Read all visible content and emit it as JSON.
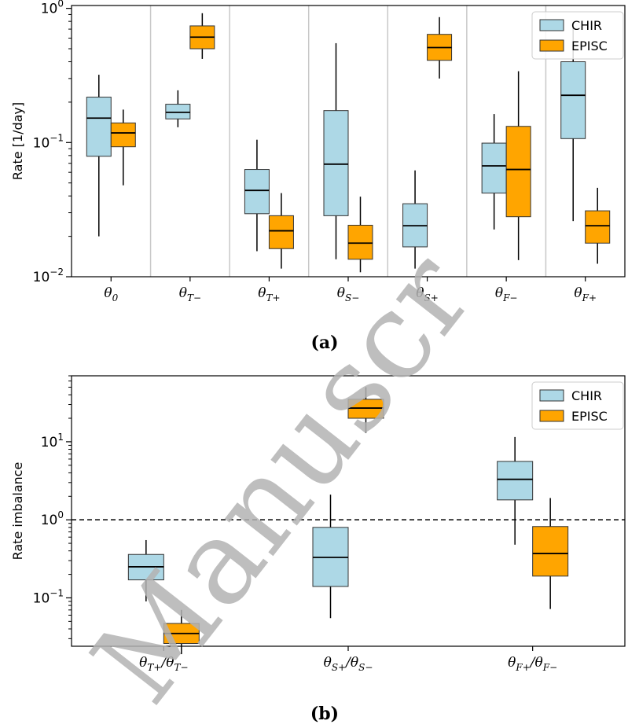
{
  "watermark": {
    "text": "Manuscr"
  },
  "chart_data": [
    {
      "type": "boxplot",
      "panel_label": "(a)",
      "ylabel": "Rate [1/day]",
      "yscale": "log",
      "ylim": [
        0.01,
        1.05
      ],
      "yticks": [
        0.01,
        0.1,
        1
      ],
      "ytick_labels": [
        {
          "base": "10",
          "exp": "−2"
        },
        {
          "base": "10",
          "exp": "−1"
        },
        {
          "base": "10",
          "exp": "0"
        }
      ],
      "separators": true,
      "legend": {
        "position": "top-right",
        "entries": [
          "CHIR",
          "EPISC"
        ]
      },
      "colors": {
        "CHIR": "#add8e6",
        "EPISC": "#ffa500"
      },
      "categories": [
        {
          "main": "θ",
          "sub": "0"
        },
        {
          "main": "θ",
          "sub": "T−"
        },
        {
          "main": "θ",
          "sub": "T+"
        },
        {
          "main": "θ",
          "sub": "S−"
        },
        {
          "main": "θ",
          "sub": "S+"
        },
        {
          "main": "θ",
          "sub": "F−"
        },
        {
          "main": "θ",
          "sub": "F+"
        }
      ],
      "series": [
        {
          "name": "CHIR",
          "boxes": [
            {
              "whislo": 0.02,
              "q1": 0.079,
              "med": 0.152,
              "q3": 0.218,
              "whishi": 0.32
            },
            {
              "whislo": 0.13,
              "q1": 0.15,
              "med": 0.168,
              "q3": 0.193,
              "whishi": 0.245
            },
            {
              "whislo": 0.0155,
              "q1": 0.0295,
              "med": 0.044,
              "q3": 0.063,
              "whishi": 0.105
            },
            {
              "whislo": 0.0135,
              "q1": 0.0285,
              "med": 0.069,
              "q3": 0.173,
              "whishi": 0.55
            },
            {
              "whislo": 0.0115,
              "q1": 0.0167,
              "med": 0.024,
              "q3": 0.035,
              "whishi": 0.062
            },
            {
              "whislo": 0.0225,
              "q1": 0.042,
              "med": 0.067,
              "q3": 0.099,
              "whishi": 0.163
            },
            {
              "whislo": 0.026,
              "q1": 0.107,
              "med": 0.225,
              "q3": 0.4,
              "whishi": 0.72
            }
          ]
        },
        {
          "name": "EPISC",
          "boxes": [
            {
              "whislo": 0.048,
              "q1": 0.093,
              "med": 0.118,
              "q3": 0.14,
              "whishi": 0.176
            },
            {
              "whislo": 0.42,
              "q1": 0.5,
              "med": 0.61,
              "q3": 0.74,
              "whishi": 0.92
            },
            {
              "whislo": 0.0115,
              "q1": 0.0162,
              "med": 0.022,
              "q3": 0.0285,
              "whishi": 0.042
            },
            {
              "whislo": 0.0108,
              "q1": 0.0135,
              "med": 0.0178,
              "q3": 0.0242,
              "whishi": 0.0395
            },
            {
              "whislo": 0.3,
              "q1": 0.41,
              "med": 0.51,
              "q3": 0.64,
              "whishi": 0.86
            },
            {
              "whislo": 0.0133,
              "q1": 0.028,
              "med": 0.063,
              "q3": 0.132,
              "whishi": 0.34
            },
            {
              "whislo": 0.0125,
              "q1": 0.0178,
              "med": 0.024,
              "q3": 0.031,
              "whishi": 0.046
            }
          ]
        }
      ]
    },
    {
      "type": "boxplot",
      "panel_label": "(b)",
      "ylabel": "Rate imbalance",
      "yscale": "log",
      "ylim": [
        0.024,
        70
      ],
      "yticks": [
        0.1,
        1,
        10
      ],
      "ytick_labels": [
        {
          "base": "10",
          "exp": "−1"
        },
        {
          "base": "10",
          "exp": "0"
        },
        {
          "base": "10",
          "exp": "1"
        }
      ],
      "reference_line": 1,
      "separators": false,
      "legend": {
        "position": "top-right",
        "entries": [
          "CHIR",
          "EPISC"
        ]
      },
      "colors": {
        "CHIR": "#add8e6",
        "EPISC": "#ffa500"
      },
      "categories": [
        {
          "num_main": "θ",
          "num_sub": "T+",
          "den_main": "θ",
          "den_sub": "T−"
        },
        {
          "num_main": "θ",
          "num_sub": "S+",
          "den_main": "θ",
          "den_sub": "S−"
        },
        {
          "num_main": "θ",
          "num_sub": "F+",
          "den_main": "θ",
          "den_sub": "F−"
        }
      ],
      "series": [
        {
          "name": "CHIR",
          "boxes": [
            {
              "whislo": 0.09,
              "q1": 0.17,
              "med": 0.25,
              "q3": 0.36,
              "whishi": 0.55
            },
            {
              "whislo": 0.055,
              "q1": 0.14,
              "med": 0.33,
              "q3": 0.8,
              "whishi": 2.1
            },
            {
              "whislo": 0.48,
              "q1": 1.8,
              "med": 3.3,
              "q3": 5.6,
              "whishi": 11.5
            }
          ]
        },
        {
          "name": "EPISC",
          "boxes": [
            {
              "whislo": 0.019,
              "q1": 0.026,
              "med": 0.035,
              "q3": 0.047,
              "whishi": 0.07
            },
            {
              "whislo": 13,
              "q1": 20,
              "med": 27,
              "q3": 35,
              "whishi": 50
            },
            {
              "whislo": 0.072,
              "q1": 0.19,
              "med": 0.37,
              "q3": 0.82,
              "whishi": 1.9
            }
          ]
        }
      ]
    }
  ]
}
